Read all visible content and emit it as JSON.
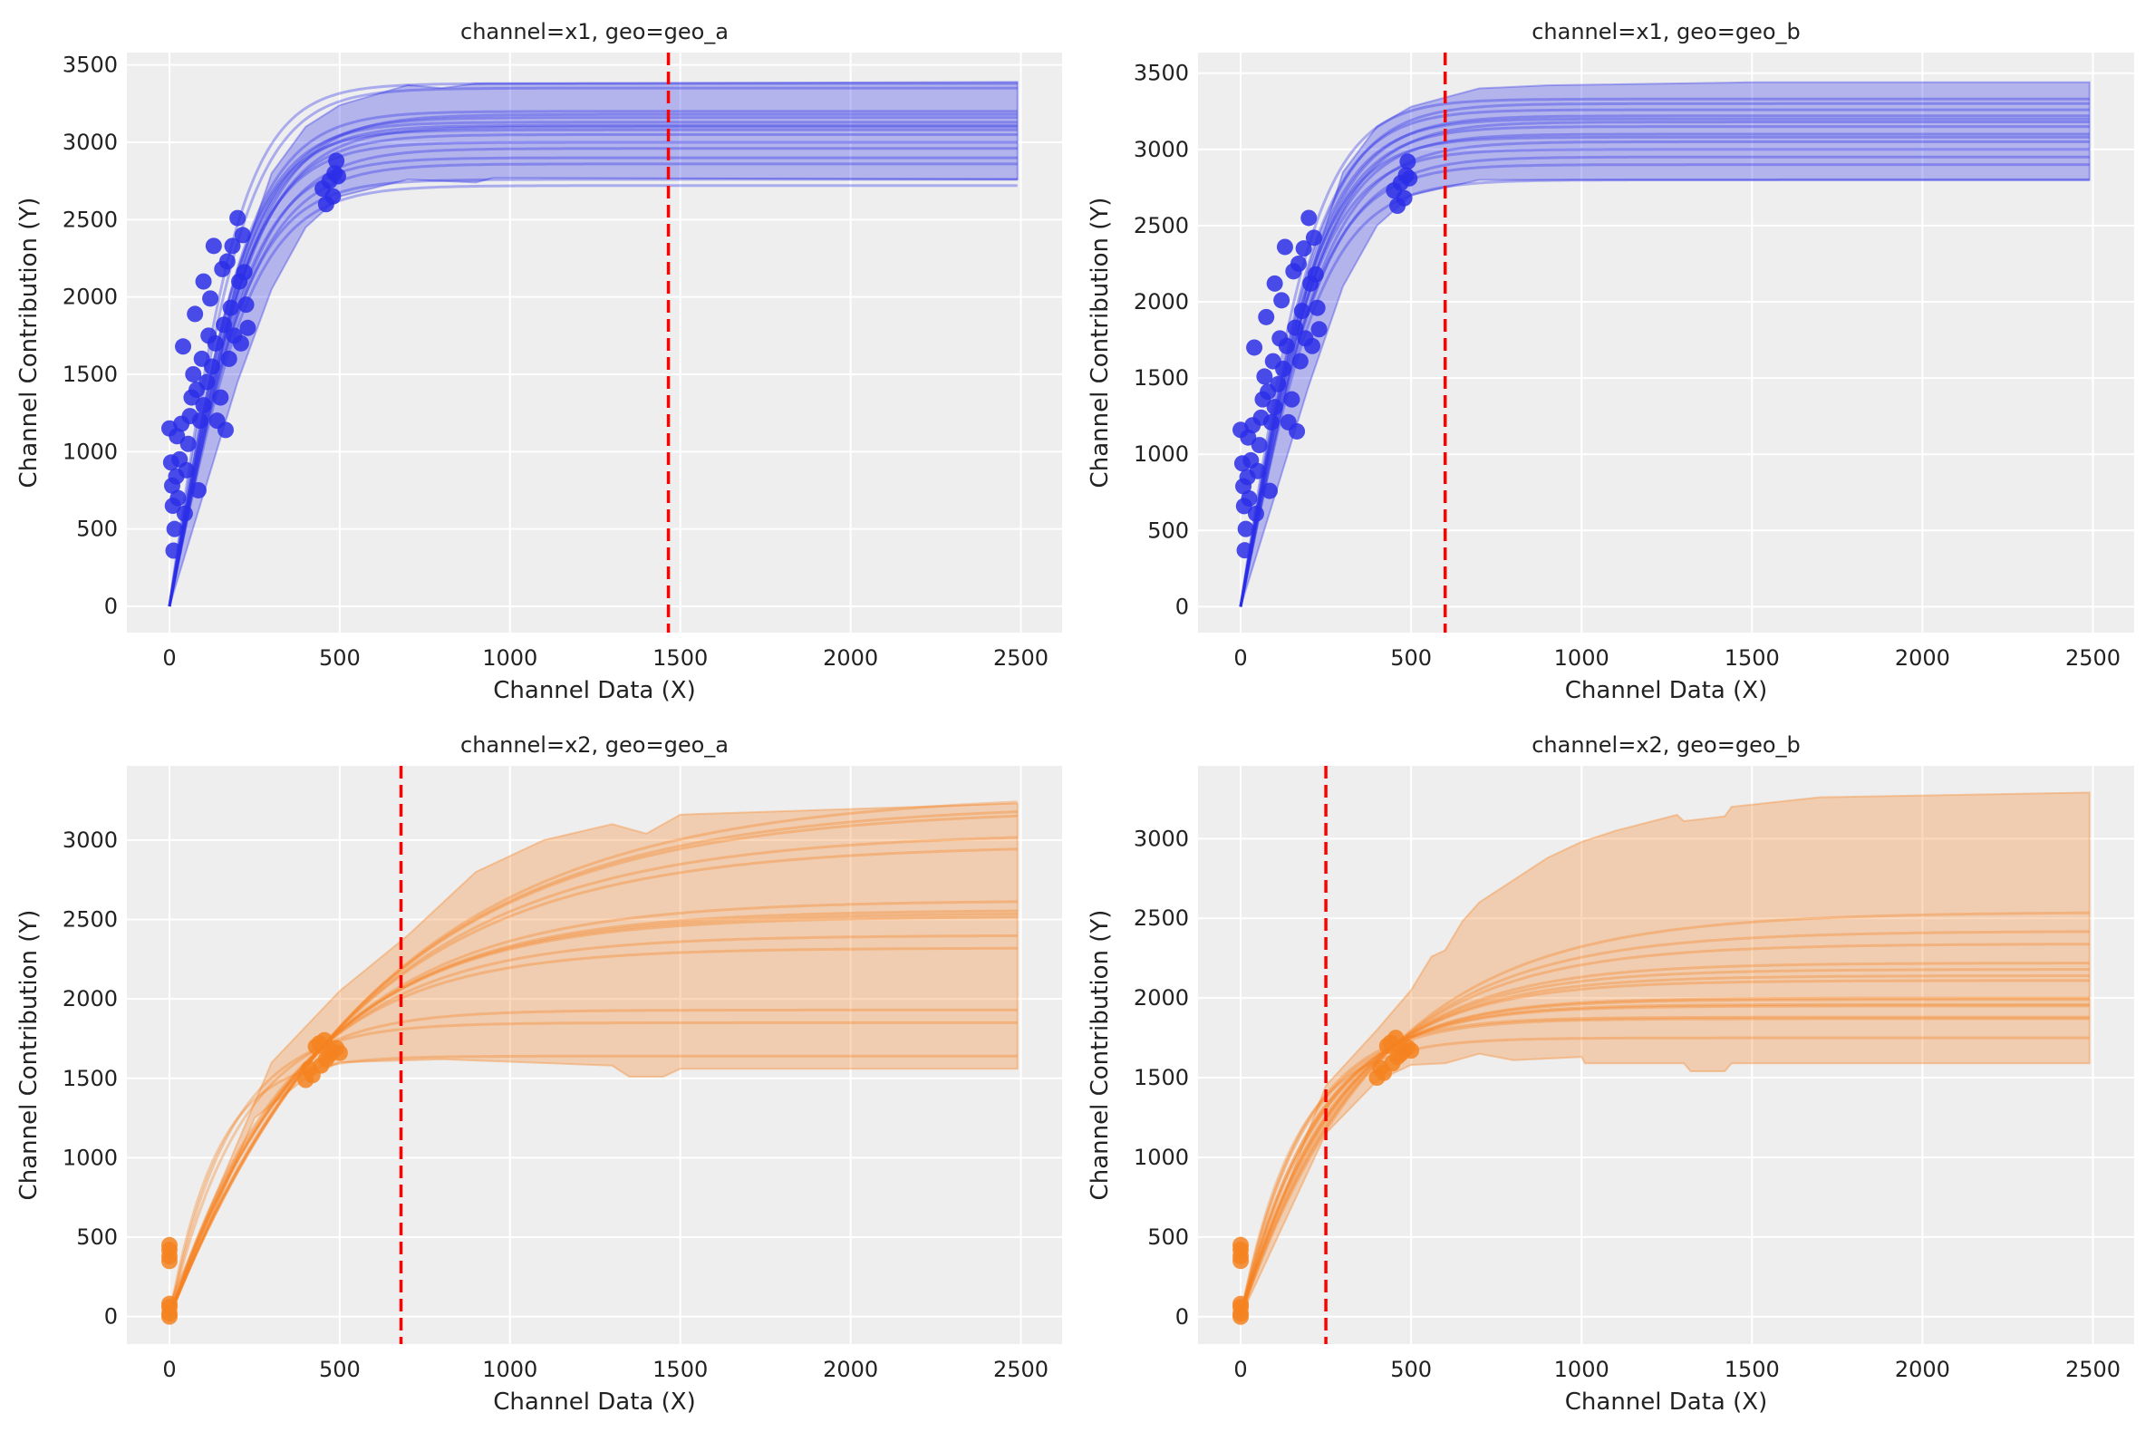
{
  "chart_data": [
    {
      "type": "line",
      "title": "channel=x1, geo=geo_a",
      "xlabel": "Channel Data (X)",
      "ylabel": "Channel Contribution (Y)",
      "xlim": [
        -125,
        2621
      ],
      "ylim": [
        -170,
        3580
      ],
      "xticks": [
        0,
        500,
        1000,
        1500,
        2000,
        2500
      ],
      "yticks": [
        0,
        500,
        1000,
        1500,
        2000,
        2500,
        3000,
        3500
      ],
      "grid": true,
      "color": "#2b2ee8",
      "curve_form": "tanh",
      "curves": [
        {
          "L": 2720,
          "k": 250
        },
        {
          "L": 2760,
          "k": 240
        },
        {
          "L": 2860,
          "k": 255
        },
        {
          "L": 2900,
          "k": 245
        },
        {
          "L": 2960,
          "k": 260
        },
        {
          "L": 3000,
          "k": 240
        },
        {
          "L": 3050,
          "k": 250
        },
        {
          "L": 3080,
          "k": 230
        },
        {
          "L": 3100,
          "k": 260
        },
        {
          "L": 3110,
          "k": 245
        },
        {
          "L": 3130,
          "k": 235
        },
        {
          "L": 3160,
          "k": 250
        },
        {
          "L": 3180,
          "k": 265
        },
        {
          "L": 3200,
          "k": 240
        },
        {
          "L": 3350,
          "k": 230
        },
        {
          "L": 3380,
          "k": 215
        }
      ],
      "hdi_lower": [
        [
          0,
          0
        ],
        [
          200,
          1450
        ],
        [
          300,
          2050
        ],
        [
          400,
          2450
        ],
        [
          500,
          2650
        ],
        [
          700,
          2760
        ],
        [
          900,
          2740
        ],
        [
          950,
          2770
        ],
        [
          2490,
          2760
        ]
      ],
      "hdi_upper": [
        [
          0,
          0
        ],
        [
          200,
          2150
        ],
        [
          300,
          2800
        ],
        [
          400,
          3100
        ],
        [
          500,
          3240
        ],
        [
          700,
          3370
        ],
        [
          800,
          3350
        ],
        [
          900,
          3380
        ],
        [
          2490,
          3390
        ]
      ],
      "scatter": [
        [
          0,
          1150
        ],
        [
          5,
          930
        ],
        [
          8,
          780
        ],
        [
          10,
          650
        ],
        [
          12,
          360
        ],
        [
          15,
          500
        ],
        [
          20,
          840
        ],
        [
          22,
          1100
        ],
        [
          25,
          700
        ],
        [
          30,
          950
        ],
        [
          35,
          1180
        ],
        [
          40,
          1680
        ],
        [
          45,
          600
        ],
        [
          50,
          880
        ],
        [
          55,
          1050
        ],
        [
          60,
          1230
        ],
        [
          65,
          1350
        ],
        [
          70,
          1500
        ],
        [
          75,
          1890
        ],
        [
          80,
          1400
        ],
        [
          85,
          750
        ],
        [
          90,
          1200
        ],
        [
          95,
          1600
        ],
        [
          100,
          2100
        ],
        [
          100,
          1300
        ],
        [
          110,
          1450
        ],
        [
          115,
          1750
        ],
        [
          120,
          1990
        ],
        [
          125,
          1550
        ],
        [
          130,
          2330
        ],
        [
          135,
          1700
        ],
        [
          140,
          1200
        ],
        [
          150,
          1350
        ],
        [
          155,
          2180
        ],
        [
          160,
          1820
        ],
        [
          165,
          1140
        ],
        [
          170,
          2230
        ],
        [
          175,
          1600
        ],
        [
          180,
          1930
        ],
        [
          185,
          2330
        ],
        [
          190,
          1750
        ],
        [
          200,
          2510
        ],
        [
          205,
          2100
        ],
        [
          210,
          1700
        ],
        [
          215,
          2400
        ],
        [
          220,
          2160
        ],
        [
          225,
          1950
        ],
        [
          230,
          1800
        ],
        [
          450,
          2700
        ],
        [
          460,
          2600
        ],
        [
          470,
          2750
        ],
        [
          480,
          2650
        ],
        [
          485,
          2800
        ],
        [
          490,
          2880
        ],
        [
          495,
          2780
        ]
      ],
      "vline": 1465,
      "vline_color": "#ff0000"
    },
    {
      "type": "line",
      "title": "channel=x1, geo=geo_b",
      "xlabel": "Channel Data (X)",
      "ylabel": "Channel Contribution (Y)",
      "xlim": [
        -125,
        2621
      ],
      "ylim": [
        -170,
        3635
      ],
      "xticks": [
        0,
        500,
        1000,
        1500,
        2000,
        2500
      ],
      "yticks": [
        0,
        500,
        1000,
        1500,
        2000,
        2500,
        3000,
        3500
      ],
      "grid": true,
      "color": "#2b2ee8",
      "curve_form": "tanh",
      "curves": [
        {
          "L": 2800,
          "k": 250
        },
        {
          "L": 2900,
          "k": 245
        },
        {
          "L": 2950,
          "k": 255
        },
        {
          "L": 3000,
          "k": 240
        },
        {
          "L": 3050,
          "k": 260
        },
        {
          "L": 3080,
          "k": 235
        },
        {
          "L": 3100,
          "k": 250
        },
        {
          "L": 3150,
          "k": 245
        },
        {
          "L": 3180,
          "k": 260
        },
        {
          "L": 3200,
          "k": 240
        },
        {
          "L": 3220,
          "k": 250
        },
        {
          "L": 3260,
          "k": 235
        },
        {
          "L": 3300,
          "k": 245
        },
        {
          "L": 3330,
          "k": 225
        }
      ],
      "hdi_lower": [
        [
          0,
          0
        ],
        [
          200,
          1450
        ],
        [
          300,
          2100
        ],
        [
          400,
          2500
        ],
        [
          500,
          2700
        ],
        [
          700,
          2800
        ],
        [
          2490,
          2800
        ]
      ],
      "hdi_upper": [
        [
          0,
          0
        ],
        [
          200,
          2150
        ],
        [
          300,
          2850
        ],
        [
          400,
          3150
        ],
        [
          500,
          3280
        ],
        [
          700,
          3400
        ],
        [
          900,
          3420
        ],
        [
          1500,
          3440
        ],
        [
          2490,
          3440
        ]
      ],
      "scatter": [
        [
          0,
          1160
        ],
        [
          5,
          940
        ],
        [
          8,
          790
        ],
        [
          10,
          660
        ],
        [
          12,
          370
        ],
        [
          15,
          510
        ],
        [
          20,
          850
        ],
        [
          22,
          1110
        ],
        [
          25,
          710
        ],
        [
          30,
          960
        ],
        [
          35,
          1190
        ],
        [
          40,
          1700
        ],
        [
          45,
          610
        ],
        [
          50,
          890
        ],
        [
          55,
          1060
        ],
        [
          60,
          1240
        ],
        [
          65,
          1360
        ],
        [
          70,
          1510
        ],
        [
          75,
          1900
        ],
        [
          80,
          1410
        ],
        [
          85,
          760
        ],
        [
          90,
          1210
        ],
        [
          95,
          1610
        ],
        [
          100,
          2120
        ],
        [
          100,
          1310
        ],
        [
          110,
          1460
        ],
        [
          115,
          1760
        ],
        [
          120,
          2010
        ],
        [
          125,
          1560
        ],
        [
          130,
          2360
        ],
        [
          135,
          1710
        ],
        [
          140,
          1210
        ],
        [
          150,
          1360
        ],
        [
          155,
          2200
        ],
        [
          160,
          1830
        ],
        [
          165,
          1150
        ],
        [
          170,
          2250
        ],
        [
          175,
          1610
        ],
        [
          180,
          1940
        ],
        [
          185,
          2350
        ],
        [
          190,
          1760
        ],
        [
          200,
          2550
        ],
        [
          205,
          2120
        ],
        [
          210,
          1710
        ],
        [
          215,
          2420
        ],
        [
          220,
          2180
        ],
        [
          225,
          1960
        ],
        [
          230,
          1820
        ],
        [
          450,
          2730
        ],
        [
          460,
          2630
        ],
        [
          470,
          2780
        ],
        [
          480,
          2680
        ],
        [
          485,
          2830
        ],
        [
          490,
          2920
        ],
        [
          495,
          2810
        ]
      ],
      "vline": 600,
      "vline_color": "#ff0000"
    },
    {
      "type": "line",
      "title": "channel=x2, geo=geo_a",
      "xlabel": "Channel Data (X)",
      "ylabel": "Channel Contribution (Y)",
      "xlim": [
        -125,
        2621
      ],
      "ylim": [
        -173,
        3467
      ],
      "xticks": [
        0,
        500,
        1000,
        1500,
        2000,
        2500
      ],
      "yticks": [
        0,
        500,
        1000,
        1500,
        2000,
        2500,
        3000
      ],
      "grid": true,
      "color": "#f58220",
      "curve_form": "exp",
      "curves": [
        {
          "L": 1640,
          "k": 140
        },
        {
          "L": 1850,
          "k": 179
        },
        {
          "L": 1930,
          "k": 211
        },
        {
          "L": 2320,
          "k": 341
        },
        {
          "L": 2400,
          "k": 366
        },
        {
          "L": 2520,
          "k": 400
        },
        {
          "L": 2540,
          "k": 407
        },
        {
          "L": 2560,
          "k": 413
        },
        {
          "L": 2620,
          "k": 430
        },
        {
          "L": 2970,
          "k": 530
        },
        {
          "L": 3050,
          "k": 553
        },
        {
          "L": 3200,
          "k": 594
        },
        {
          "L": 3230,
          "k": 602
        },
        {
          "L": 3300,
          "k": 622
        }
      ],
      "hdi_lower": [
        [
          0,
          0
        ],
        [
          250,
          1250
        ],
        [
          400,
          1500
        ],
        [
          500,
          1600
        ],
        [
          800,
          1620
        ],
        [
          1300,
          1580
        ],
        [
          1350,
          1510
        ],
        [
          1450,
          1510
        ],
        [
          1500,
          1560
        ],
        [
          2490,
          1560
        ]
      ],
      "hdi_upper": [
        [
          0,
          80
        ],
        [
          300,
          1600
        ],
        [
          500,
          2050
        ],
        [
          700,
          2400
        ],
        [
          900,
          2800
        ],
        [
          1100,
          3000
        ],
        [
          1300,
          3100
        ],
        [
          1400,
          3040
        ],
        [
          1500,
          3160
        ],
        [
          2490,
          3230
        ]
      ],
      "scatter": [
        [
          0,
          0
        ],
        [
          0,
          20
        ],
        [
          0,
          60
        ],
        [
          0,
          80
        ],
        [
          0,
          350
        ],
        [
          0,
          380
        ],
        [
          0,
          420
        ],
        [
          0,
          450
        ],
        [
          400,
          1490
        ],
        [
          410,
          1560
        ],
        [
          420,
          1520
        ],
        [
          430,
          1700
        ],
        [
          440,
          1720
        ],
        [
          445,
          1580
        ],
        [
          455,
          1740
        ],
        [
          460,
          1620
        ],
        [
          470,
          1650
        ],
        [
          480,
          1670
        ],
        [
          490,
          1690
        ],
        [
          500,
          1660
        ]
      ],
      "vline": 680,
      "vline_color": "#ff0000"
    },
    {
      "type": "line",
      "title": "channel=x2, geo=geo_b",
      "xlabel": "Channel Data (X)",
      "ylabel": "Channel Contribution (Y)",
      "xlim": [
        -125,
        2621
      ],
      "ylim": [
        -172,
        3457
      ],
      "xticks": [
        0,
        500,
        1000,
        1500,
        2000,
        2500
      ],
      "yticks": [
        0,
        500,
        1000,
        1500,
        2000,
        2500,
        3000
      ],
      "grid": true,
      "color": "#f58220",
      "curve_form": "exp",
      "curves": [
        {
          "L": 1750,
          "k": 160
        },
        {
          "L": 1870,
          "k": 188
        },
        {
          "L": 1880,
          "k": 185
        },
        {
          "L": 1950,
          "k": 219
        },
        {
          "L": 1960,
          "k": 222
        },
        {
          "L": 1990,
          "k": 234
        },
        {
          "L": 2000,
          "k": 237
        },
        {
          "L": 2110,
          "k": 274
        },
        {
          "L": 2140,
          "k": 285
        },
        {
          "L": 2180,
          "k": 297
        },
        {
          "L": 2220,
          "k": 310
        },
        {
          "L": 2340,
          "k": 348
        },
        {
          "L": 2420,
          "k": 372
        },
        {
          "L": 2540,
          "k": 407
        }
      ],
      "hdi_lower": [
        [
          0,
          0
        ],
        [
          250,
          1150
        ],
        [
          400,
          1480
        ],
        [
          500,
          1580
        ],
        [
          600,
          1590
        ],
        [
          700,
          1650
        ],
        [
          800,
          1610
        ],
        [
          1000,
          1630
        ],
        [
          1010,
          1590
        ],
        [
          1300,
          1590
        ],
        [
          1320,
          1540
        ],
        [
          1420,
          1540
        ],
        [
          1440,
          1590
        ],
        [
          2490,
          1590
        ]
      ],
      "hdi_upper": [
        [
          0,
          60
        ],
        [
          250,
          1450
        ],
        [
          400,
          1800
        ],
        [
          500,
          2050
        ],
        [
          560,
          2260
        ],
        [
          600,
          2300
        ],
        [
          650,
          2480
        ],
        [
          700,
          2600
        ],
        [
          800,
          2740
        ],
        [
          900,
          2880
        ],
        [
          1000,
          2980
        ],
        [
          1100,
          3050
        ],
        [
          1280,
          3150
        ],
        [
          1300,
          3110
        ],
        [
          1420,
          3140
        ],
        [
          1440,
          3200
        ],
        [
          1700,
          3260
        ],
        [
          2490,
          3290
        ]
      ],
      "scatter": [
        [
          0,
          0
        ],
        [
          0,
          20
        ],
        [
          0,
          60
        ],
        [
          0,
          80
        ],
        [
          0,
          350
        ],
        [
          0,
          380
        ],
        [
          0,
          420
        ],
        [
          0,
          450
        ],
        [
          400,
          1500
        ],
        [
          410,
          1560
        ],
        [
          420,
          1530
        ],
        [
          430,
          1700
        ],
        [
          440,
          1720
        ],
        [
          445,
          1590
        ],
        [
          455,
          1750
        ],
        [
          460,
          1630
        ],
        [
          470,
          1650
        ],
        [
          480,
          1670
        ],
        [
          490,
          1690
        ],
        [
          500,
          1670
        ]
      ],
      "vline": 250,
      "vline_color": "#ff0000"
    }
  ]
}
